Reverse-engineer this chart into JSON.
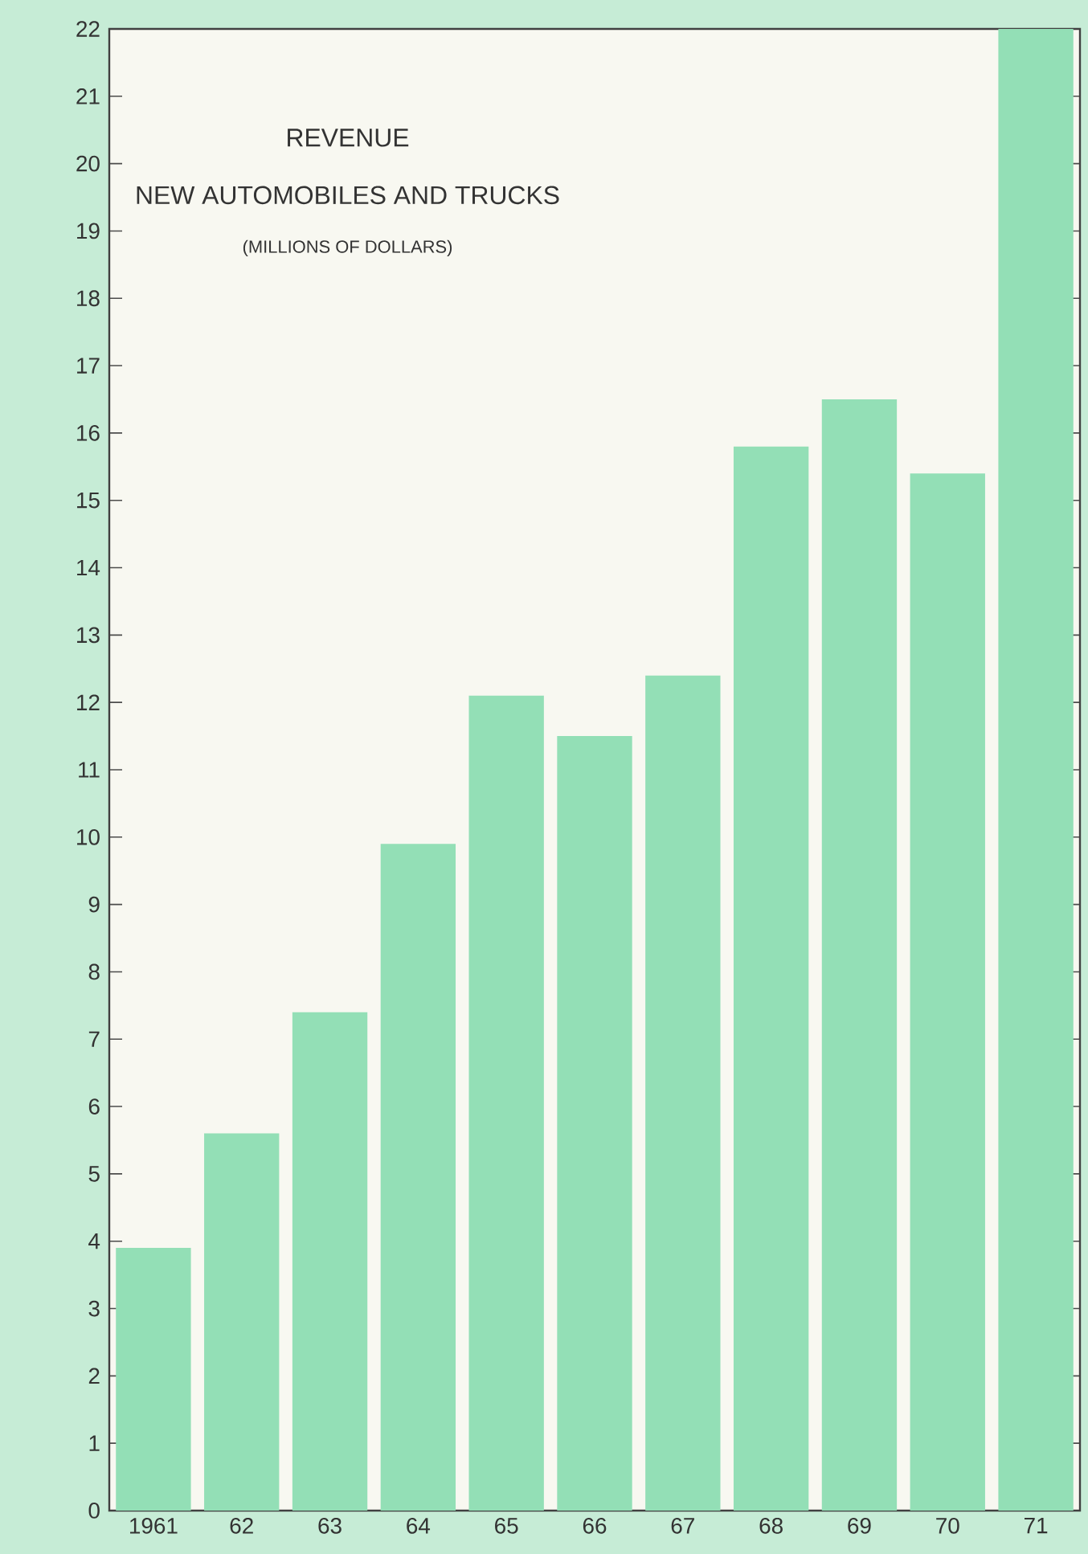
{
  "chart_data": {
    "type": "bar",
    "title": "REVENUE",
    "subtitle": "NEW AUTOMOBILES AND TRUCKS",
    "annotations": [
      "(MILLIONS OF DOLLARS)"
    ],
    "categories": [
      "1961",
      "62",
      "63",
      "64",
      "65",
      "66",
      "67",
      "68",
      "69",
      "70",
      "71"
    ],
    "values": [
      3.9,
      5.6,
      7.4,
      9.9,
      12.1,
      11.5,
      12.4,
      15.8,
      16.5,
      15.4,
      22
    ],
    "color": "#93dfb6",
    "ylim": [
      0,
      22
    ],
    "yticks": [
      0,
      1,
      2,
      3,
      4,
      5,
      6,
      7,
      8,
      9,
      10,
      11,
      12,
      13,
      14,
      15,
      16,
      17,
      18,
      19,
      20,
      21,
      22
    ],
    "grid": false
  }
}
